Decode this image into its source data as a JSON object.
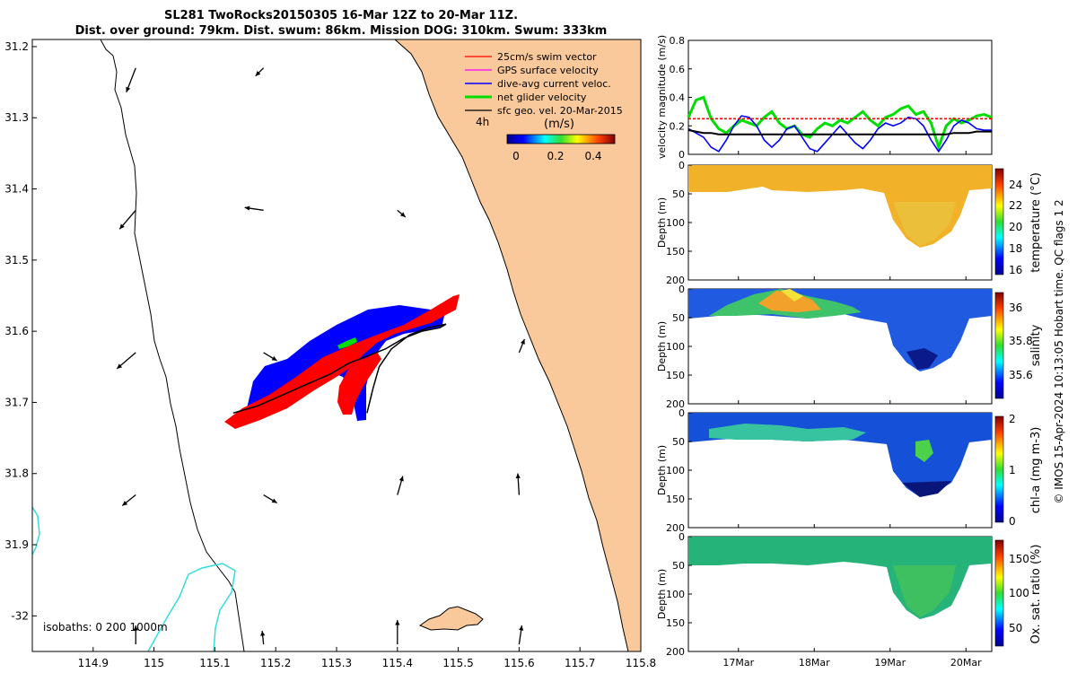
{
  "header": {
    "title_line1": "SL281 TwoRocks20150305 16-Mar 12Z to 20-Mar 11Z.",
    "title_line2": "Dist. over ground: 79km. Dist. swum: 86km. Mission DOG: 310km. Swum: 333km"
  },
  "colors": {
    "land": "#f9c99b",
    "swim": "#ff0000",
    "gps": "#ff00ff",
    "diveavg": "#0000ff",
    "net": "#00dd00",
    "sfc": "#000000",
    "isobath200": "#33dddd"
  },
  "chart_data": [
    {
      "type": "map",
      "name": "track-map",
      "xlabel_ticks": [
        "114.9",
        "115",
        "115.1",
        "115.2",
        "115.3",
        "115.4",
        "115.5",
        "115.6",
        "115.7",
        "115.8"
      ],
      "ylabel_ticks": [
        "31.2",
        "31.3",
        "31.4",
        "31.5",
        "31.6",
        "31.7",
        "31.8",
        "31.9",
        "-32"
      ],
      "xlim": [
        114.8,
        115.8
      ],
      "ylim": [
        -32.05,
        -31.19
      ],
      "legend": {
        "entries": [
          "25cm/s swim vector",
          "GPS surface velocity",
          "dive-avg current veloc.",
          "net glider velocity",
          "sfc geo. vel. 20-Mar-2015"
        ],
        "time_label": "4h",
        "units_label": "(m/s)",
        "colorbar_ticks": [
          "0",
          "0.2",
          "0.4"
        ],
        "colorbar_range": [
          0,
          0.5
        ],
        "placement": "top-right"
      },
      "isobaths_label": "isobaths: 0   200  1000m",
      "track": {
        "lon": [
          115.13,
          115.17,
          115.21,
          115.25,
          115.29,
          115.32,
          115.35,
          115.38,
          115.41,
          115.44,
          115.47,
          115.48
        ],
        "lat": [
          -31.715,
          -31.705,
          -31.69,
          -31.675,
          -31.66,
          -31.645,
          -31.635,
          -31.625,
          -31.61,
          -31.6,
          -31.595,
          -31.59
        ]
      },
      "return_track": {
        "lon": [
          115.48,
          115.45,
          115.42,
          115.39,
          115.37,
          115.36,
          115.35
        ],
        "lat": [
          -31.59,
          -31.595,
          -31.605,
          -31.625,
          -31.65,
          -31.68,
          -31.715
        ]
      },
      "geo_vectors": [
        {
          "lon": 114.97,
          "lat": -31.23,
          "u": -0.07,
          "v": -0.18
        },
        {
          "lon": 115.18,
          "lat": -31.23,
          "u": -0.06,
          "v": -0.06
        },
        {
          "lon": 115.4,
          "lat": -31.23,
          "u": 0.0,
          "v": 0.0
        },
        {
          "lon": 114.97,
          "lat": -31.43,
          "u": -0.12,
          "v": -0.14
        },
        {
          "lon": 115.18,
          "lat": -31.43,
          "u": -0.14,
          "v": 0.02
        },
        {
          "lon": 115.4,
          "lat": -31.43,
          "u": 0.06,
          "v": -0.05
        },
        {
          "lon": 114.97,
          "lat": -31.63,
          "u": -0.14,
          "v": -0.12
        },
        {
          "lon": 115.18,
          "lat": -31.63,
          "u": 0.1,
          "v": -0.06
        },
        {
          "lon": 115.6,
          "lat": -31.63,
          "u": 0.04,
          "v": 0.1
        },
        {
          "lon": 114.97,
          "lat": -31.83,
          "u": -0.1,
          "v": -0.08
        },
        {
          "lon": 115.18,
          "lat": -31.83,
          "u": 0.1,
          "v": -0.06
        },
        {
          "lon": 115.4,
          "lat": -31.83,
          "u": 0.04,
          "v": 0.14
        },
        {
          "lon": 115.6,
          "lat": -31.83,
          "u": -0.01,
          "v": 0.16
        },
        {
          "lon": 114.97,
          "lat": -32.04,
          "u": 0.0,
          "v": 0.14
        },
        {
          "lon": 115.18,
          "lat": -32.04,
          "u": -0.01,
          "v": 0.1
        },
        {
          "lon": 115.4,
          "lat": -32.04,
          "u": 0.0,
          "v": 0.18
        },
        {
          "lon": 115.6,
          "lat": -32.04,
          "u": 0.02,
          "v": 0.14
        }
      ]
    },
    {
      "type": "line",
      "name": "velocity-magnitude",
      "ylabel": "velocity magnitude (m/s)",
      "ylim": [
        0,
        0.8
      ],
      "yticks": [
        "0",
        "0.2",
        "0.4",
        "0.6",
        "0.8"
      ],
      "x": [
        0,
        0.1,
        0.2,
        0.3,
        0.4,
        0.5,
        0.6,
        0.7,
        0.8,
        0.9,
        1.0,
        1.1,
        1.2,
        1.3,
        1.4,
        1.5,
        1.6,
        1.7,
        1.8,
        1.9,
        2.0,
        2.1,
        2.2,
        2.3,
        2.4,
        2.5,
        2.6,
        2.7,
        2.8,
        2.9,
        3.0,
        3.1,
        3.2,
        3.3,
        3.4,
        3.5,
        3.6,
        3.7,
        3.8,
        3.9,
        4.0
      ],
      "series": [
        {
          "name": "net glider velocity",
          "color": "#00dd00",
          "values": [
            0.26,
            0.38,
            0.4,
            0.25,
            0.18,
            0.15,
            0.2,
            0.24,
            0.22,
            0.2,
            0.26,
            0.3,
            0.22,
            0.18,
            0.2,
            0.14,
            0.12,
            0.18,
            0.22,
            0.2,
            0.24,
            0.22,
            0.26,
            0.3,
            0.24,
            0.2,
            0.26,
            0.28,
            0.32,
            0.34,
            0.28,
            0.3,
            0.22,
            0.05,
            0.2,
            0.25,
            0.22,
            0.24,
            0.27,
            0.28,
            0.26
          ]
        },
        {
          "name": "dive-avg current veloc.",
          "color": "#0000ff",
          "values": [
            0.18,
            0.15,
            0.12,
            0.05,
            0.02,
            0.1,
            0.2,
            0.27,
            0.26,
            0.2,
            0.1,
            0.05,
            0.1,
            0.18,
            0.2,
            0.12,
            0.04,
            0.02,
            0.08,
            0.14,
            0.2,
            0.14,
            0.08,
            0.04,
            0.1,
            0.18,
            0.22,
            0.2,
            0.22,
            0.26,
            0.25,
            0.2,
            0.1,
            0.02,
            0.1,
            0.2,
            0.24,
            0.22,
            0.18,
            0.17,
            0.17
          ]
        },
        {
          "name": "swim vector",
          "color": "#ff0000",
          "values": [
            0.25,
            0.25,
            0.25,
            0.25,
            0.25,
            0.25,
            0.25,
            0.25,
            0.25,
            0.25,
            0.25,
            0.25,
            0.25,
            0.25,
            0.25,
            0.25,
            0.25,
            0.25,
            0.25,
            0.25,
            0.25,
            0.25,
            0.25,
            0.25,
            0.25,
            0.25,
            0.25,
            0.25,
            0.25,
            0.25,
            0.25,
            0.25,
            0.25,
            0.25,
            0.25,
            0.25,
            0.25,
            0.25,
            0.25,
            0.25,
            0.25
          ]
        },
        {
          "name": "sfc geo. vel.",
          "color": "#000000",
          "values": [
            0.17,
            0.16,
            0.15,
            0.15,
            0.14,
            0.14,
            0.14,
            0.14,
            0.14,
            0.14,
            0.14,
            0.14,
            0.14,
            0.14,
            0.14,
            0.14,
            0.14,
            0.14,
            0.14,
            0.14,
            0.14,
            0.14,
            0.14,
            0.14,
            0.14,
            0.14,
            0.14,
            0.14,
            0.14,
            0.14,
            0.14,
            0.14,
            0.14,
            0.14,
            0.14,
            0.15,
            0.15,
            0.15,
            0.16,
            0.16,
            0.16
          ]
        }
      ]
    },
    {
      "type": "heatmap",
      "name": "temperature-section",
      "ylabel": "Depth (m)",
      "cbar_label": "temperature (°C)",
      "ylim": [
        0,
        200
      ],
      "yticks": [
        "0",
        "50",
        "100",
        "150",
        "200"
      ],
      "cbar_ticks": [
        "16",
        "18",
        "20",
        "22",
        "24"
      ],
      "cbar_range": [
        15.5,
        25.5
      ]
    },
    {
      "type": "heatmap",
      "name": "salinity-section",
      "ylabel": "Depth (m)",
      "cbar_label": "salinity",
      "ylim": [
        0,
        200
      ],
      "yticks": [
        "0",
        "50",
        "100",
        "150",
        "200"
      ],
      "cbar_ticks": [
        "35.6",
        "35.8",
        "36"
      ],
      "cbar_range": [
        35.45,
        36.08
      ]
    },
    {
      "type": "heatmap",
      "name": "chla-section",
      "ylabel": "Depth (m)",
      "cbar_label": "chl-a (mg m-3)",
      "ylim": [
        0,
        200
      ],
      "yticks": [
        "0",
        "50",
        "100",
        "150",
        "200"
      ],
      "cbar_ticks": [
        "0",
        "1",
        "2"
      ],
      "cbar_range": [
        0,
        2
      ]
    },
    {
      "type": "heatmap",
      "name": "oxygen-section",
      "ylabel": "Depth (m)",
      "cbar_label": "Ox. sat. ratio (%)",
      "ylim": [
        0,
        200
      ],
      "yticks": [
        "0",
        "50",
        "100",
        "150",
        "200"
      ],
      "cbar_ticks": [
        "50",
        "100",
        "150"
      ],
      "cbar_range": [
        25,
        175
      ],
      "xticks": [
        "17Mar",
        "18Mar",
        "19Mar",
        "20Mar"
      ]
    }
  ],
  "footer": {
    "credit": "© IMOS 15-Apr-2024 10:13:05 Hobart time. QC flags 1  2"
  }
}
